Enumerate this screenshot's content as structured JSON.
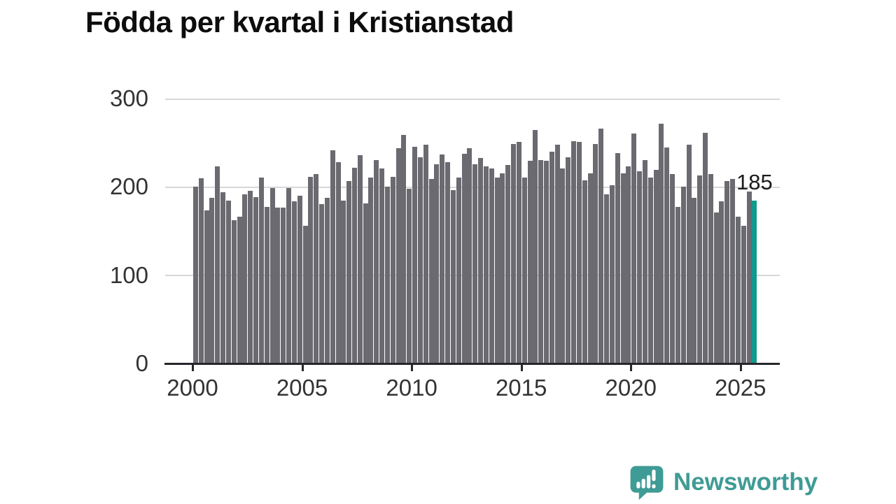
{
  "title": "Födda per kvartal i Kristianstad",
  "annotation": {
    "value_label": "185"
  },
  "y_axis": {
    "ticks": [
      "0",
      "100",
      "200",
      "300"
    ]
  },
  "x_axis": {
    "ticks": [
      "2000",
      "2005",
      "2010",
      "2015",
      "2020",
      "2025"
    ]
  },
  "logo": {
    "text": "Newsworthy",
    "icon": "newsworthy-speech-bubble-chart-icon"
  },
  "colors": {
    "bar": "#6a6a70",
    "highlight": "#0f9a8d",
    "grid": "#d7d7d7",
    "axis": "#26262b",
    "tick_label": "#333333",
    "title": "#0d0d0d",
    "annotation": "#1c1c1c",
    "logo": "#3f9b95"
  },
  "chart_data": {
    "type": "bar",
    "title": "Födda per kvartal i Kristianstad",
    "xlabel": "",
    "ylabel": "",
    "unit": "födda per kvartal",
    "start_period": "2000-Q1",
    "end_period": "2025-Q3",
    "frequency": "quarterly",
    "ylim": [
      0,
      300
    ],
    "y_gridlines": [
      100,
      200,
      300
    ],
    "x_tick_years": [
      2000,
      2005,
      2010,
      2015,
      2020,
      2025
    ],
    "highlight_last_bar": true,
    "highlight_value": 185,
    "legend_position": "none",
    "values": [
      201,
      210,
      174,
      188,
      224,
      194,
      185,
      163,
      167,
      192,
      196,
      189,
      211,
      178,
      199,
      177,
      177,
      199,
      184,
      190,
      156,
      212,
      215,
      181,
      188,
      242,
      228,
      185,
      207,
      222,
      236,
      182,
      211,
      231,
      221,
      201,
      212,
      244,
      259,
      198,
      246,
      234,
      248,
      209,
      226,
      237,
      228,
      197,
      211,
      238,
      244,
      226,
      233,
      224,
      221,
      211,
      216,
      225,
      249,
      251,
      211,
      230,
      265,
      231,
      230,
      240,
      248,
      221,
      234,
      252,
      251,
      208,
      216,
      249,
      266,
      192,
      202,
      239,
      216,
      224,
      261,
      218,
      231,
      211,
      220,
      272,
      245,
      215,
      178,
      201,
      248,
      188,
      213,
      262,
      215,
      171,
      184,
      207,
      209,
      167,
      156,
      195,
      185
    ]
  }
}
